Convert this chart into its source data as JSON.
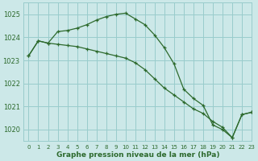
{
  "line1_x": [
    0,
    1,
    2,
    3,
    4,
    5,
    6,
    7,
    8,
    9,
    10,
    11,
    12,
    13,
    14,
    15,
    16,
    17,
    18,
    19,
    20,
    21,
    22,
    23
  ],
  "line1_y": [
    1023.2,
    1023.85,
    1023.75,
    1024.25,
    1024.3,
    1024.4,
    1024.55,
    1024.75,
    1024.9,
    1025.0,
    1025.05,
    1024.8,
    1024.55,
    1024.1,
    1023.55,
    1022.85,
    1021.75,
    1021.35,
    1021.05,
    1020.2,
    1020.0,
    1019.65,
    1020.65,
    1020.75
  ],
  "line2_x": [
    0,
    1,
    2,
    3,
    4,
    5,
    6,
    7,
    8,
    9,
    10,
    11,
    12,
    13,
    14,
    15,
    16,
    17,
    18,
    19,
    20,
    21,
    22,
    23
  ],
  "line2_y": [
    1023.2,
    1023.85,
    1023.75,
    1023.7,
    1023.65,
    1023.6,
    1023.5,
    1023.4,
    1023.3,
    1023.2,
    1023.1,
    1022.9,
    1022.6,
    1022.2,
    1021.8,
    1021.5,
    1021.2,
    1020.9,
    1020.7,
    1020.35,
    1020.1,
    1019.65,
    1020.65,
    1020.75
  ],
  "line_color": "#2d6a2d",
  "bg_color": "#cce8e8",
  "grid_color": "#99cccc",
  "xlabel": "Graphe pression niveau de la mer (hPa)",
  "ylim": [
    1019.5,
    1025.5
  ],
  "xlim": [
    -0.5,
    23
  ],
  "yticks": [
    1020,
    1021,
    1022,
    1023,
    1024,
    1025
  ],
  "xticks": [
    0,
    1,
    2,
    3,
    4,
    5,
    6,
    7,
    8,
    9,
    10,
    11,
    12,
    13,
    14,
    15,
    16,
    17,
    18,
    19,
    20,
    21,
    22,
    23
  ],
  "xtick_labels": [
    "0",
    "1",
    "2",
    "3",
    "4",
    "5",
    "6",
    "7",
    "8",
    "9",
    "10",
    "11",
    "12",
    "13",
    "14",
    "15",
    "16",
    "17",
    "18",
    "19",
    "20",
    "21",
    "22",
    "23"
  ]
}
